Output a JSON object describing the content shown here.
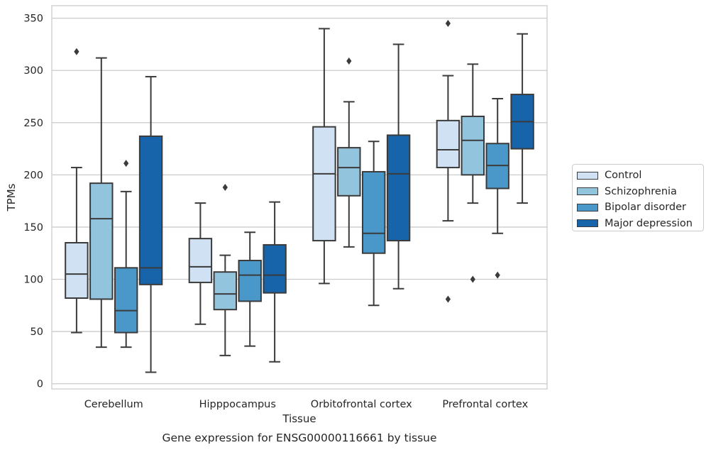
{
  "chart_data": {
    "type": "box",
    "title": "Gene expression for ENSG00000116661 by tissue",
    "xlabel": "Tissue",
    "ylabel": "TPMs",
    "ylim": [
      -5,
      362
    ],
    "yticks": [
      0,
      50,
      100,
      150,
      200,
      250,
      300,
      350
    ],
    "grid": "horizontal",
    "legend_position": "right",
    "categories": [
      "Cerebellum",
      "Hipppocampus",
      "Orbitofrontal cortex",
      "Prefrontal cortex"
    ],
    "series": [
      {
        "name": "Control",
        "color": "#cfe1f2",
        "boxes": [
          {
            "whislo": 49,
            "q1": 82,
            "med": 105,
            "q3": 135,
            "whishi": 207,
            "fliers": [
              318
            ]
          },
          {
            "whislo": 57,
            "q1": 97,
            "med": 112,
            "q3": 139,
            "whishi": 173,
            "fliers": []
          },
          {
            "whislo": 96,
            "q1": 137,
            "med": 201,
            "q3": 246,
            "whishi": 340,
            "fliers": []
          },
          {
            "whislo": 156,
            "q1": 207,
            "med": 224,
            "q3": 252,
            "whishi": 295,
            "fliers": [
              345,
              81
            ]
          }
        ]
      },
      {
        "name": "Schizophrenia",
        "color": "#93c4de",
        "boxes": [
          {
            "whislo": 35,
            "q1": 81,
            "med": 158,
            "q3": 192,
            "whishi": 312,
            "fliers": []
          },
          {
            "whislo": 27,
            "q1": 71,
            "med": 86,
            "q3": 107,
            "whishi": 123,
            "fliers": [
              188
            ]
          },
          {
            "whislo": 131,
            "q1": 180,
            "med": 207,
            "q3": 226,
            "whishi": 270,
            "fliers": [
              309
            ]
          },
          {
            "whislo": 173,
            "q1": 200,
            "med": 233,
            "q3": 256,
            "whishi": 306,
            "fliers": [
              100
            ]
          }
        ]
      },
      {
        "name": "Bipolar disorder",
        "color": "#4a98c9",
        "boxes": [
          {
            "whislo": 35,
            "q1": 49,
            "med": 70,
            "q3": 111,
            "whishi": 184,
            "fliers": [
              211
            ]
          },
          {
            "whislo": 36,
            "q1": 79,
            "med": 104,
            "q3": 118,
            "whishi": 145,
            "fliers": []
          },
          {
            "whislo": 75,
            "q1": 125,
            "med": 144,
            "q3": 203,
            "whishi": 232,
            "fliers": []
          },
          {
            "whislo": 144,
            "q1": 187,
            "med": 209,
            "q3": 230,
            "whishi": 273,
            "fliers": [
              104
            ]
          }
        ]
      },
      {
        "name": "Major depression",
        "color": "#1764ab",
        "boxes": [
          {
            "whislo": 11,
            "q1": 95,
            "med": 111,
            "q3": 237,
            "whishi": 294,
            "fliers": []
          },
          {
            "whislo": 21,
            "q1": 87,
            "med": 104,
            "q3": 133,
            "whishi": 174,
            "fliers": []
          },
          {
            "whislo": 91,
            "q1": 137,
            "med": 201,
            "q3": 238,
            "whishi": 325,
            "fliers": []
          },
          {
            "whislo": 173,
            "q1": 225,
            "med": 251,
            "q3": 277,
            "whishi": 335,
            "fliers": []
          }
        ]
      }
    ]
  }
}
